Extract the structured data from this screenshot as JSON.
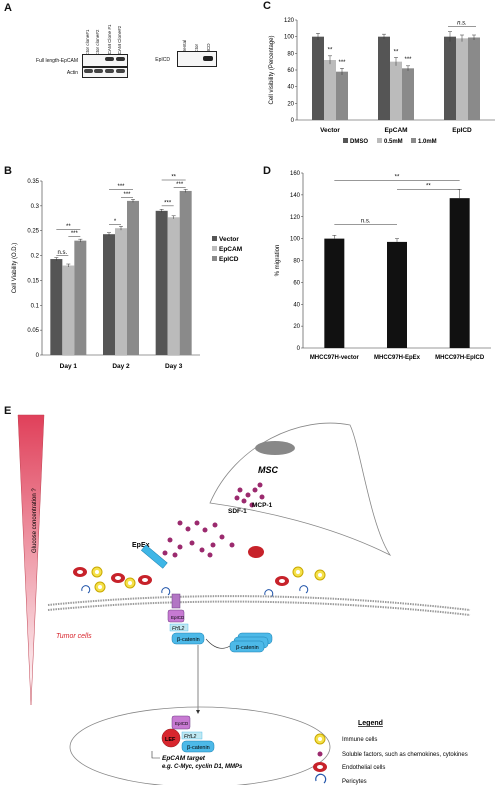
{
  "panels": {
    "a": "A",
    "b": "B",
    "c": "C",
    "d": "D",
    "e": "E"
  },
  "western": {
    "left_lanes": [
      "Vector clone#1",
      "Vector clone#2",
      "EpCAM Clone #1",
      "EpCAM Clone#2"
    ],
    "left_rows": [
      "Full length-EpCAM",
      "Actin"
    ],
    "right_lanes": [
      "Parental",
      "Vector",
      "EpICD"
    ],
    "right_rows": [
      "EpICD"
    ]
  },
  "chart_data": [
    {
      "id": "C",
      "type": "bar",
      "ylabel": "Cell visibility (Percentage)",
      "ylim": [
        0,
        120
      ],
      "yticks": [
        0,
        20,
        40,
        60,
        80,
        100,
        120
      ],
      "categories": [
        "Vector",
        "EpCAM",
        "EpICD"
      ],
      "series": [
        {
          "name": "DMSO",
          "color": "#555555",
          "values": [
            100,
            100,
            100
          ],
          "errors": [
            4,
            3,
            6
          ]
        },
        {
          "name": "0.5mM",
          "color": "#bbbbbb",
          "values": [
            72,
            70,
            98
          ],
          "errors": [
            5,
            5,
            4
          ]
        },
        {
          "name": "1.0mM",
          "color": "#8a8a8a",
          "values": [
            58,
            62,
            99
          ],
          "errors": [
            4,
            3,
            3
          ]
        }
      ],
      "significance": [
        "**",
        "***",
        "**",
        "***",
        "n.s."
      ],
      "legend": "bottom"
    },
    {
      "id": "B",
      "type": "bar",
      "ylabel": "Cell Viability (O.D.)",
      "ylim": [
        0,
        0.35
      ],
      "yticks": [
        "0",
        "0.05",
        "0.1",
        "0.15",
        "0.2",
        "0.25",
        "0.3",
        "0.35"
      ],
      "categories": [
        "Day 1",
        "Day 2",
        "Day 3"
      ],
      "series": [
        {
          "name": "Vector",
          "color": "#555555",
          "values": [
            0.193,
            0.243,
            0.29
          ],
          "errors": [
            0.003,
            0.003,
            0.003
          ]
        },
        {
          "name": "EpCAM",
          "color": "#bbbbbb",
          "values": [
            0.18,
            0.255,
            0.277
          ],
          "errors": [
            0.003,
            0.004,
            0.003
          ]
        },
        {
          "name": "EpICD",
          "color": "#8a8a8a",
          "values": [
            0.23,
            0.31,
            0.33
          ],
          "errors": [
            0.003,
            0.003,
            0.003
          ]
        }
      ],
      "significance": [
        "n.s.",
        "**",
        "***",
        "*",
        "***",
        "***",
        "***",
        "**",
        "***"
      ],
      "legend": "right"
    },
    {
      "id": "D",
      "type": "bar",
      "ylabel": "% migration",
      "ylim": [
        0,
        160
      ],
      "yticks": [
        0,
        20,
        40,
        60,
        80,
        100,
        120,
        140,
        160
      ],
      "categories": [
        "MHCC97H-vector",
        "MHCC97H-EpEx",
        "MHCC97H-EpICD"
      ],
      "series": [
        {
          "name": "",
          "color": "#111111",
          "values": [
            100,
            97,
            137
          ],
          "errors": [
            3,
            3,
            8
          ]
        }
      ],
      "significance": [
        "n.s.",
        "**",
        "**"
      ]
    }
  ],
  "diagram": {
    "gradient_label": "Glucose concentration ?",
    "msc": "MSC",
    "sdf": "SDF-1",
    "mcp": "MCP-1",
    "epex": "EpEx",
    "tumor": "Tumor cells",
    "epicd": "EpICD",
    "fhl2": "FHL2",
    "bcat": "β-catenin",
    "lef": "LEF",
    "target1": "EpCAM target",
    "target2": "e.g. C-Myc, cyclin D1, MMPs",
    "legend_title": "Legend",
    "legend": [
      "Immune cells",
      "Soluble factors, such as chemokines, cytokines",
      "Endothelial cells",
      "Pericytes"
    ]
  }
}
